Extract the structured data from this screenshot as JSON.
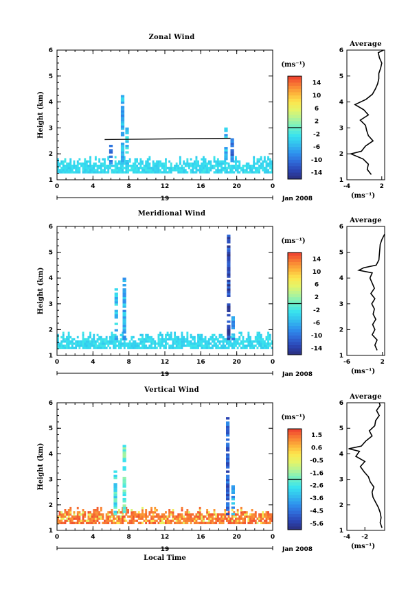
{
  "chart_data": [
    {
      "type": "heatmap",
      "title": "Zonal Wind",
      "ylabel": "Height (km)",
      "xlabel": "",
      "xlim": [
        0,
        24
      ],
      "ylim": [
        1,
        6
      ],
      "xticks": [
        "0",
        "4",
        "8",
        "12",
        "16",
        "20",
        "0"
      ],
      "yticks": [
        "1",
        "2",
        "3",
        "4",
        "5",
        "6"
      ],
      "date_day": "19",
      "date_label": "Jan 2008",
      "colorbar": {
        "unit": "(ms⁻¹)",
        "ticks": [
          "14",
          "10",
          "6",
          "2",
          "-2",
          "-6",
          "-10",
          "-14"
        ],
        "min": -16,
        "max": 16
      },
      "average": {
        "title": "Average",
        "xticks": [
          "-4",
          "2"
        ],
        "xlim": [
          -4,
          2.5
        ],
        "unit": "(ms⁻¹)",
        "profile": [
          [
            1.2,
            0.2
          ],
          [
            1.4,
            -0.5
          ],
          [
            1.6,
            -0.3
          ],
          [
            1.8,
            -1.2
          ],
          [
            2.0,
            -3.3
          ],
          [
            2.1,
            -1.5
          ],
          [
            2.3,
            -0.8
          ],
          [
            2.5,
            0.5
          ],
          [
            2.7,
            -0.3
          ],
          [
            2.9,
            -0.6
          ],
          [
            3.1,
            -0.8
          ],
          [
            3.3,
            -1.7
          ],
          [
            3.5,
            -0.3
          ],
          [
            3.7,
            -1.1
          ],
          [
            3.9,
            -2.6
          ],
          [
            4.1,
            -0.7
          ],
          [
            4.3,
            0.4
          ],
          [
            4.5,
            0.9
          ],
          [
            4.7,
            1.3
          ],
          [
            4.9,
            1.5
          ],
          [
            5.1,
            1.5
          ],
          [
            5.3,
            1.8
          ],
          [
            5.5,
            2.0
          ],
          [
            5.7,
            1.6
          ],
          [
            5.9,
            1.4
          ],
          [
            6.0,
            2.3
          ]
        ]
      }
    },
    {
      "type": "heatmap",
      "title": "Meridional Wind",
      "ylabel": "Height (km)",
      "xlabel": "",
      "xlim": [
        0,
        24
      ],
      "ylim": [
        1,
        6
      ],
      "xticks": [
        "0",
        "4",
        "8",
        "12",
        "16",
        "20",
        "0"
      ],
      "yticks": [
        "1",
        "2",
        "3",
        "4",
        "5",
        "6"
      ],
      "date_day": "19",
      "date_label": "Jan 2008",
      "colorbar": {
        "unit": "(ms⁻¹)",
        "ticks": [
          "14",
          "10",
          "6",
          "2",
          "-2",
          "-6",
          "-10",
          "-14"
        ],
        "min": -16,
        "max": 16
      },
      "average": {
        "title": "Average",
        "xticks": [
          "-6",
          "2"
        ],
        "xlim": [
          -6,
          2.5
        ],
        "unit": "(ms⁻¹)",
        "profile": [
          [
            1.2,
            0.8
          ],
          [
            1.4,
            0.3
          ],
          [
            1.6,
            0.8
          ],
          [
            1.8,
            -0.3
          ],
          [
            2.0,
            0.3
          ],
          [
            2.2,
            -0.2
          ],
          [
            2.4,
            0.5
          ],
          [
            2.6,
            -0.1
          ],
          [
            2.8,
            0.2
          ],
          [
            3.0,
            -0.4
          ],
          [
            3.2,
            0.3
          ],
          [
            3.4,
            -0.6
          ],
          [
            3.6,
            0.2
          ],
          [
            3.8,
            -0.3
          ],
          [
            4.0,
            -0.8
          ],
          [
            4.2,
            -0.3
          ],
          [
            4.3,
            -3.3
          ],
          [
            4.4,
            -2.2
          ],
          [
            4.5,
            0.6
          ],
          [
            4.7,
            1.2
          ],
          [
            4.9,
            1.3
          ],
          [
            5.1,
            1.4
          ],
          [
            5.3,
            1.5
          ],
          [
            5.5,
            1.9
          ],
          [
            5.7,
            2.5
          ]
        ]
      }
    },
    {
      "type": "heatmap",
      "title": "Vertical Wind",
      "ylabel": "Height (km)",
      "xlabel": "Local Time",
      "xlim": [
        0,
        24
      ],
      "ylim": [
        1,
        6
      ],
      "xticks": [
        "0",
        "4",
        "8",
        "12",
        "16",
        "20",
        "0"
      ],
      "yticks": [
        "1",
        "2",
        "3",
        "4",
        "5",
        "6"
      ],
      "date_day": "19",
      "date_label": "Jan 2008",
      "colorbar": {
        "unit": "(ms⁻¹)",
        "ticks": [
          "1.5",
          "0.6",
          "-0.5",
          "-1.6",
          "-2.6",
          "-3.6",
          "-4.5",
          "-5.6"
        ],
        "min": -6.1,
        "max": 2.0
      },
      "average": {
        "title": "Average",
        "xticks": [
          "-4",
          "-2"
        ],
        "xlim": [
          -4,
          0.2
        ],
        "unit": "(ms⁻¹)",
        "profile": [
          [
            1.1,
            -0.1
          ],
          [
            1.3,
            -0.3
          ],
          [
            1.5,
            -0.2
          ],
          [
            1.7,
            -0.3
          ],
          [
            1.9,
            -0.5
          ],
          [
            2.1,
            -0.8
          ],
          [
            2.3,
            -1.1
          ],
          [
            2.5,
            -1.2
          ],
          [
            2.7,
            -1.0
          ],
          [
            2.9,
            -1.4
          ],
          [
            3.1,
            -1.6
          ],
          [
            3.3,
            -2.1
          ],
          [
            3.5,
            -2.5
          ],
          [
            3.7,
            -2.0
          ],
          [
            3.9,
            -3.0
          ],
          [
            4.1,
            -2.6
          ],
          [
            4.2,
            -3.8
          ],
          [
            4.3,
            -2.4
          ],
          [
            4.5,
            -1.9
          ],
          [
            4.7,
            -1.2
          ],
          [
            4.9,
            -1.5
          ],
          [
            5.1,
            -0.9
          ],
          [
            5.3,
            -0.8
          ],
          [
            5.5,
            -0.4
          ],
          [
            5.7,
            -0.7
          ],
          [
            5.9,
            -0.3
          ],
          [
            6.0,
            -0.4
          ]
        ]
      }
    }
  ]
}
